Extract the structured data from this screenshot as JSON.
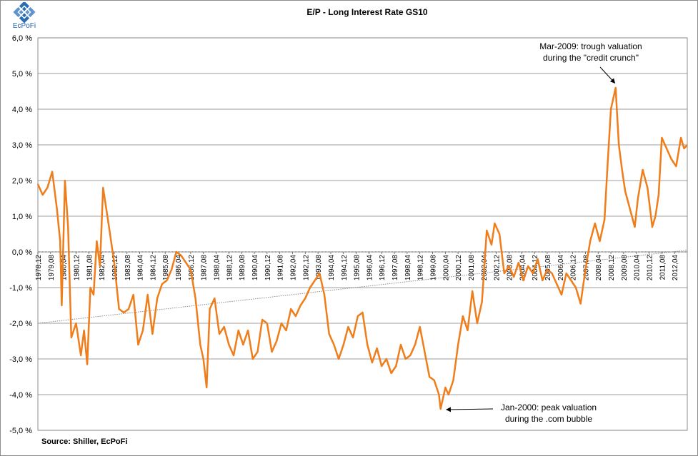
{
  "logo": {
    "name": "ecpofi-logo",
    "text": "EcPoFi"
  },
  "source_text": "Source: Shiller,  EcPoFi",
  "colors": {
    "series": "#ef7d1a",
    "grid": "#7f7f7f",
    "trend": "#8c8c8c"
  },
  "chart_data": {
    "type": "line",
    "title": "E/P - Long Interest Rate GS10",
    "xlabel": "",
    "ylabel": "",
    "ylim": [
      -5,
      6
    ],
    "yticks": [
      "6,0 %",
      "5,0 %",
      "4,0 %",
      "3,0 %",
      "2,0 %",
      "1,0 %",
      "0,0 %",
      "-1,0 %",
      "-2,0 %",
      "-3,0 %",
      "-4,0 %",
      "-5,0 %"
    ],
    "ytick_values": [
      6,
      5,
      4,
      3,
      2,
      1,
      0,
      -1,
      -2,
      -3,
      -4,
      -5
    ],
    "xticks": [
      "1978,12",
      "1979,08",
      "1980,04",
      "1980,12",
      "1981,08",
      "1982,04",
      "1982,12",
      "1983,08",
      "1984,04",
      "1984,12",
      "1985,08",
      "1986,04",
      "1986,12",
      "1987,08",
      "1988,04",
      "1988,12",
      "1989,08",
      "1990,04",
      "1990,12",
      "1991,08",
      "1992,04",
      "1992,12",
      "1993,08",
      "1994,04",
      "1994,12",
      "1995,08",
      "1996,04",
      "1996,12",
      "1997,08",
      "1998,04",
      "1998,12",
      "1999,08",
      "2000,04",
      "2000,12",
      "2001,08",
      "2002,04",
      "2002,12",
      "2003,08",
      "2004,04",
      "2004,12",
      "2005,08",
      "2006,04",
      "2006,12",
      "2007,08",
      "2008,04",
      "2008,12",
      "2009,08",
      "2010,04",
      "2010,12",
      "2011,08",
      "2012,04"
    ],
    "xrange": [
      "1978,12",
      "2012,12"
    ],
    "grid": true,
    "legend": "none",
    "series": [
      {
        "points": [
          [
            "1978,12",
            1.9
          ],
          [
            "1979,03",
            1.6
          ],
          [
            "1979,06",
            1.8
          ],
          [
            "1979,09",
            2.25
          ],
          [
            "1979,12",
            1.2
          ],
          [
            "1980,02",
            0.3
          ],
          [
            "1980,03",
            -1.5
          ],
          [
            "1980,05",
            2.0
          ],
          [
            "1980,07",
            0.7
          ],
          [
            "1980,09",
            -2.4
          ],
          [
            "1980,12",
            -2.0
          ],
          [
            "1981,03",
            -2.9
          ],
          [
            "1981,05",
            -2.2
          ],
          [
            "1981,07",
            -3.15
          ],
          [
            "1981,09",
            -1.0
          ],
          [
            "1981,11",
            -1.2
          ],
          [
            "1982,01",
            0.3
          ],
          [
            "1982,03",
            -0.4
          ],
          [
            "1982,05",
            1.8
          ],
          [
            "1982,07",
            1.2
          ],
          [
            "1982,09",
            0.6
          ],
          [
            "1982,12",
            -0.3
          ],
          [
            "1983,03",
            -1.6
          ],
          [
            "1983,06",
            -1.7
          ],
          [
            "1983,09",
            -1.6
          ],
          [
            "1983,12",
            -1.2
          ],
          [
            "1984,03",
            -2.6
          ],
          [
            "1984,06",
            -2.2
          ],
          [
            "1984,09",
            -1.2
          ],
          [
            "1984,12",
            -2.3
          ],
          [
            "1985,03",
            -1.3
          ],
          [
            "1985,06",
            -0.9
          ],
          [
            "1985,09",
            -0.8
          ],
          [
            "1985,12",
            -0.5
          ],
          [
            "1986,03",
            0.0
          ],
          [
            "1986,06",
            -0.1
          ],
          [
            "1986,09",
            -0.3
          ],
          [
            "1986,12",
            -0.5
          ],
          [
            "1987,03",
            -1.3
          ],
          [
            "1987,06",
            -2.6
          ],
          [
            "1987,08",
            -3.0
          ],
          [
            "1987,10",
            -3.8
          ],
          [
            "1987,12",
            -1.6
          ],
          [
            "1988,03",
            -1.3
          ],
          [
            "1988,06",
            -2.3
          ],
          [
            "1988,09",
            -2.1
          ],
          [
            "1988,12",
            -2.6
          ],
          [
            "1989,03",
            -2.9
          ],
          [
            "1989,06",
            -2.2
          ],
          [
            "1989,09",
            -2.6
          ],
          [
            "1989,12",
            -2.2
          ],
          [
            "1990,03",
            -3.0
          ],
          [
            "1990,06",
            -2.8
          ],
          [
            "1990,09",
            -1.9
          ],
          [
            "1990,12",
            -2.0
          ],
          [
            "1991,03",
            -2.8
          ],
          [
            "1991,06",
            -2.5
          ],
          [
            "1991,09",
            -2.0
          ],
          [
            "1991,12",
            -2.2
          ],
          [
            "1992,03",
            -1.6
          ],
          [
            "1992,06",
            -1.8
          ],
          [
            "1992,09",
            -1.5
          ],
          [
            "1992,12",
            -1.3
          ],
          [
            "1993,03",
            -1.0
          ],
          [
            "1993,06",
            -0.8
          ],
          [
            "1993,09",
            -0.6
          ],
          [
            "1993,12",
            -1.2
          ],
          [
            "1994,03",
            -2.3
          ],
          [
            "1994,06",
            -2.6
          ],
          [
            "1994,09",
            -3.0
          ],
          [
            "1994,12",
            -2.6
          ],
          [
            "1995,03",
            -2.1
          ],
          [
            "1995,06",
            -2.4
          ],
          [
            "1995,09",
            -1.8
          ],
          [
            "1995,12",
            -1.7
          ],
          [
            "1996,03",
            -2.6
          ],
          [
            "1996,06",
            -3.1
          ],
          [
            "1996,09",
            -2.7
          ],
          [
            "1996,12",
            -3.2
          ],
          [
            "1997,03",
            -3.0
          ],
          [
            "1997,06",
            -3.4
          ],
          [
            "1997,09",
            -3.2
          ],
          [
            "1997,12",
            -2.6
          ],
          [
            "1998,03",
            -3.0
          ],
          [
            "1998,06",
            -2.9
          ],
          [
            "1998,09",
            -2.6
          ],
          [
            "1998,12",
            -2.1
          ],
          [
            "1999,03",
            -2.8
          ],
          [
            "1999,06",
            -3.5
          ],
          [
            "1999,09",
            -3.6
          ],
          [
            "1999,12",
            -4.0
          ],
          [
            "2000,01",
            -4.4
          ],
          [
            "2000,04",
            -3.8
          ],
          [
            "2000,06",
            -4.0
          ],
          [
            "2000,09",
            -3.6
          ],
          [
            "2000,12",
            -2.6
          ],
          [
            "2001,03",
            -1.8
          ],
          [
            "2001,06",
            -2.2
          ],
          [
            "2001,09",
            -1.1
          ],
          [
            "2001,12",
            -2.0
          ],
          [
            "2002,03",
            -1.4
          ],
          [
            "2002,06",
            0.6
          ],
          [
            "2002,09",
            0.2
          ],
          [
            "2002,11",
            0.8
          ],
          [
            "2003,02",
            0.5
          ],
          [
            "2003,05",
            -0.6
          ],
          [
            "2003,08",
            -0.4
          ],
          [
            "2003,11",
            -0.7
          ],
          [
            "2004,02",
            -0.3
          ],
          [
            "2004,05",
            -0.8
          ],
          [
            "2004,08",
            -0.4
          ],
          [
            "2004,11",
            -0.6
          ],
          [
            "2005,02",
            -0.2
          ],
          [
            "2005,05",
            -0.8
          ],
          [
            "2005,08",
            -0.5
          ],
          [
            "2005,11",
            -0.6
          ],
          [
            "2006,02",
            -0.9
          ],
          [
            "2006,05",
            -1.2
          ],
          [
            "2006,08",
            -0.6
          ],
          [
            "2006,11",
            -0.8
          ],
          [
            "2007,02",
            -1.0
          ],
          [
            "2007,05",
            -1.45
          ],
          [
            "2007,08",
            -0.5
          ],
          [
            "2007,11",
            0.3
          ],
          [
            "2008,02",
            0.8
          ],
          [
            "2008,05",
            0.3
          ],
          [
            "2008,08",
            0.9
          ],
          [
            "2008,10",
            2.5
          ],
          [
            "2008,12",
            4.0
          ],
          [
            "2009,03",
            4.6
          ],
          [
            "2009,05",
            3.0
          ],
          [
            "2009,07",
            2.3
          ],
          [
            "2009,09",
            1.7
          ],
          [
            "2009,12",
            1.2
          ],
          [
            "2010,03",
            0.7
          ],
          [
            "2010,05",
            1.5
          ],
          [
            "2010,08",
            2.3
          ],
          [
            "2010,11",
            1.8
          ],
          [
            "2011,02",
            0.7
          ],
          [
            "2011,04",
            1.0
          ],
          [
            "2011,06",
            1.6
          ],
          [
            "2011,08",
            3.2
          ],
          [
            "2011,11",
            2.9
          ],
          [
            "2012,02",
            2.6
          ],
          [
            "2012,05",
            2.4
          ],
          [
            "2012,08",
            3.2
          ],
          [
            "2012,10",
            2.9
          ],
          [
            "2012,12",
            3.0
          ]
        ]
      }
    ],
    "trendline": {
      "style": "dotted",
      "points": [
        [
          "1978,12",
          -2.0
        ],
        [
          "2012,12",
          0.05
        ]
      ]
    },
    "annotations": [
      {
        "lines": [
          "Mar-2009:  trough valuation",
          "during the \"credit crunch\""
        ],
        "target": [
          "2009,03",
          4.65
        ]
      },
      {
        "lines": [
          "Jan-2000:  peak valuation",
          "during the .com bubble"
        ],
        "target": [
          "2000,01",
          -4.4
        ]
      }
    ]
  }
}
